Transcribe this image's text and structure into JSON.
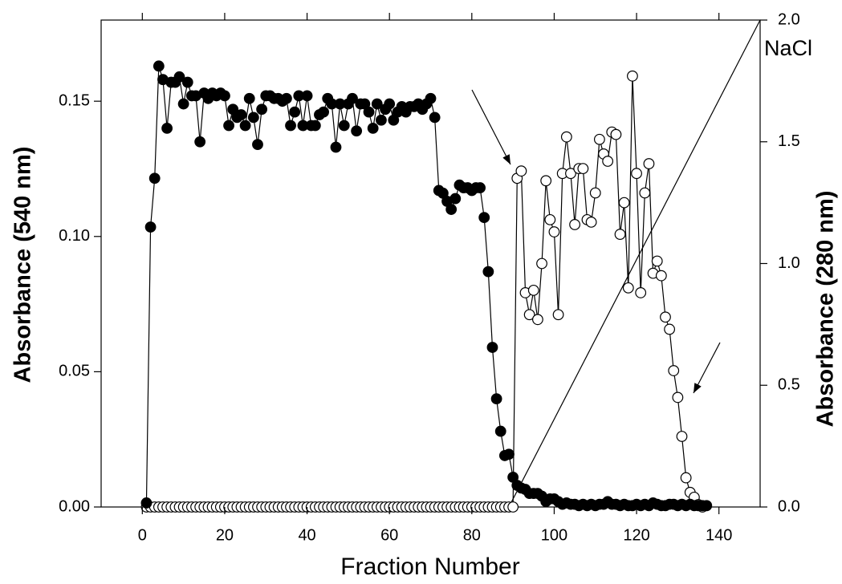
{
  "chart_data": {
    "type": "scatter",
    "xlabel": "Fraction Number",
    "ylabel": "Absorbance (540 nm)",
    "y2label": "Absorbance (280 nm)",
    "xlim": [
      -10,
      150
    ],
    "xticks": [
      0,
      20,
      40,
      60,
      80,
      100,
      120,
      140
    ],
    "ylim": [
      0,
      0.18
    ],
    "yticks": [
      {
        "value": 0,
        "label": "0.00"
      },
      {
        "value": 0.05,
        "label": "0.05"
      },
      {
        "value": 0.1,
        "label": "0.10"
      },
      {
        "value": 0.15,
        "label": "0.15"
      }
    ],
    "y2lim": [
      0,
      2.0
    ],
    "y2ticks": [
      {
        "value": 0,
        "label": "0.0"
      },
      {
        "value": 0.5,
        "label": "0.5"
      },
      {
        "value": 1.0,
        "label": "1.0"
      },
      {
        "value": 1.5,
        "label": "1.5"
      },
      {
        "value": 2.0,
        "label": "2.0"
      }
    ],
    "x": [
      1,
      2,
      3,
      4,
      5,
      6,
      7,
      8,
      9,
      10,
      11,
      12,
      13,
      14,
      15,
      16,
      17,
      18,
      19,
      20,
      21,
      22,
      23,
      24,
      25,
      26,
      27,
      28,
      29,
      30,
      31,
      32,
      33,
      34,
      35,
      36,
      37,
      38,
      39,
      40,
      41,
      42,
      43,
      44,
      45,
      46,
      47,
      48,
      49,
      50,
      51,
      52,
      53,
      54,
      55,
      56,
      57,
      58,
      59,
      60,
      61,
      62,
      63,
      64,
      65,
      66,
      67,
      68,
      69,
      70,
      71,
      72,
      73,
      74,
      75,
      76,
      77,
      78,
      79,
      80,
      81,
      82,
      83,
      84,
      85,
      86,
      87,
      88,
      89,
      90,
      91,
      92,
      93,
      94,
      95,
      96,
      97,
      98,
      99,
      100,
      101,
      102,
      103,
      104,
      105,
      106,
      107,
      108,
      109,
      110,
      111,
      112,
      113,
      114,
      115,
      116,
      117,
      118,
      119,
      120,
      121,
      122,
      123,
      124,
      125,
      126,
      127,
      128,
      129,
      130,
      131,
      132,
      133,
      134,
      135,
      136,
      137
    ],
    "series": [
      {
        "marker": "filled",
        "color": "#000000",
        "axis": "y",
        "values": [
          0.0015,
          0.1035,
          0.1215,
          0.163,
          0.158,
          0.14,
          0.157,
          0.157,
          0.159,
          0.149,
          0.157,
          0.152,
          0.152,
          0.135,
          0.153,
          0.151,
          0.153,
          0.152,
          0.153,
          0.152,
          0.141,
          0.147,
          0.144,
          0.145,
          0.141,
          0.151,
          0.144,
          0.134,
          0.147,
          0.152,
          0.152,
          0.151,
          0.151,
          0.15,
          0.151,
          0.141,
          0.146,
          0.152,
          0.141,
          0.152,
          0.141,
          0.141,
          0.145,
          0.146,
          0.151,
          0.149,
          0.133,
          0.149,
          0.141,
          0.149,
          0.151,
          0.139,
          0.149,
          0.149,
          0.146,
          0.14,
          0.149,
          0.143,
          0.147,
          0.149,
          0.143,
          0.146,
          0.148,
          0.146,
          0.148,
          0.148,
          0.149,
          0.147,
          0.149,
          0.151,
          0.144,
          0.117,
          0.116,
          0.113,
          0.11,
          0.114,
          0.119,
          0.118,
          0.118,
          0.117,
          0.118,
          0.118,
          0.107,
          0.087,
          0.059,
          0.04,
          0.028,
          0.019,
          0.0195,
          0.011,
          0.008,
          0.007,
          0.0065,
          0.005,
          0.005,
          0.005,
          0.004,
          0.002,
          0.003,
          0.003,
          0.002,
          0.001,
          0.0015,
          0.001,
          0.001,
          0.0005,
          0.001,
          0.0005,
          0.001,
          0.0005,
          0.001,
          0.001,
          0.002,
          0.001,
          0.001,
          0.0005,
          0.001,
          0.0005,
          0.0005,
          0.001,
          0.0005,
          0.001,
          0.0005,
          0.0015,
          0.001,
          0.0005,
          0.0005,
          0.001,
          0.001,
          0.0005,
          0.001,
          0.0005,
          0.001,
          0.0005,
          0.0005,
          0.0005,
          0.0005
        ]
      },
      {
        "marker": "open",
        "color": "#000000",
        "axis": "y2",
        "values": [
          0,
          0,
          0,
          0,
          0,
          0,
          0,
          0,
          0,
          0,
          0,
          0,
          0,
          0,
          0,
          0,
          0,
          0,
          0,
          0,
          0,
          0,
          0,
          0,
          0,
          0,
          0,
          0,
          0,
          0,
          0,
          0,
          0,
          0,
          0,
          0,
          0,
          0,
          0,
          0,
          0,
          0,
          0,
          0,
          0,
          0,
          0,
          0,
          0,
          0,
          0,
          0,
          0,
          0,
          0,
          0,
          0,
          0,
          0,
          0,
          0,
          0,
          0,
          0,
          0,
          0,
          0,
          0,
          0,
          0,
          0,
          0,
          0,
          0,
          0,
          0,
          0,
          0,
          0,
          0,
          0,
          0,
          0,
          0,
          0,
          0,
          0,
          0,
          0,
          0,
          1.35,
          1.38,
          0.88,
          0.79,
          0.89,
          0.77,
          1.0,
          1.34,
          1.18,
          1.13,
          0.79,
          1.37,
          1.52,
          1.37,
          1.16,
          1.39,
          1.39,
          1.18,
          1.17,
          1.29,
          1.51,
          1.45,
          1.42,
          1.54,
          1.53,
          1.12,
          1.25,
          0.9,
          1.77,
          1.37,
          0.88,
          1.29,
          1.41,
          0.96,
          1.01,
          0.95,
          0.78,
          0.73,
          0.56,
          0.45,
          0.29,
          0.12,
          0.06,
          0.04,
          0.01,
          0,
          null
        ]
      },
      {
        "name": "NaCl",
        "marker": "none",
        "color": "#000000",
        "axis": "y2",
        "x": [
          89,
          150
        ],
        "values": [
          0,
          2.0
        ]
      }
    ]
  }
}
